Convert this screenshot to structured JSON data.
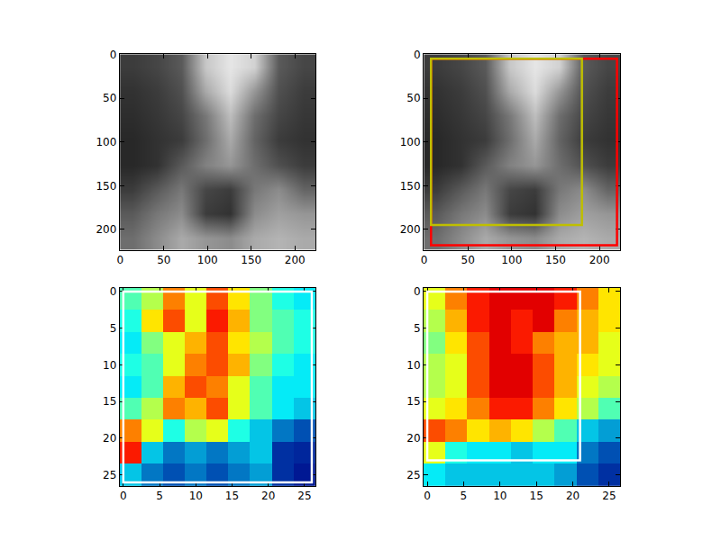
{
  "chart_data": [
    {
      "type": "image",
      "grid": false,
      "xlim": [
        -0.5,
        223.5
      ],
      "ylim": [
        223.5,
        -0.5
      ],
      "xticks": [
        0,
        50,
        100,
        150,
        200
      ],
      "yticks": [
        0,
        50,
        100,
        150,
        200
      ],
      "x": [
        14,
        42,
        70,
        98,
        126,
        154,
        182,
        210
      ],
      "y": [
        14,
        42,
        70,
        98,
        126,
        154,
        182,
        210
      ],
      "clim": [
        0,
        255
      ],
      "cells": [
        [
          60,
          70,
          90,
          200,
          230,
          210,
          90,
          70
        ],
        [
          50,
          60,
          80,
          170,
          220,
          150,
          80,
          60
        ],
        [
          45,
          55,
          70,
          120,
          190,
          110,
          70,
          55
        ],
        [
          40,
          50,
          60,
          110,
          170,
          100,
          60,
          50
        ],
        [
          40,
          50,
          90,
          130,
          150,
          110,
          80,
          60
        ],
        [
          60,
          90,
          120,
          70,
          60,
          120,
          140,
          100
        ],
        [
          90,
          120,
          140,
          60,
          50,
          140,
          160,
          150
        ],
        [
          110,
          140,
          170,
          150,
          140,
          170,
          180,
          170
        ]
      ],
      "boxes": []
    },
    {
      "type": "image",
      "grid": false,
      "xlim": [
        -0.5,
        223.5
      ],
      "ylim": [
        223.5,
        -0.5
      ],
      "xticks": [
        0,
        50,
        100,
        150,
        200
      ],
      "yticks": [
        0,
        50,
        100,
        150,
        200
      ],
      "x": [
        14,
        42,
        70,
        98,
        126,
        154,
        182,
        210
      ],
      "y": [
        14,
        42,
        70,
        98,
        126,
        154,
        182,
        210
      ],
      "clim": [
        0,
        255
      ],
      "cells": [
        [
          60,
          70,
          90,
          200,
          230,
          210,
          90,
          70
        ],
        [
          50,
          60,
          80,
          170,
          220,
          150,
          80,
          60
        ],
        [
          45,
          55,
          70,
          120,
          190,
          110,
          70,
          55
        ],
        [
          40,
          50,
          60,
          110,
          170,
          100,
          60,
          50
        ],
        [
          40,
          50,
          90,
          130,
          150,
          110,
          80,
          60
        ],
        [
          60,
          90,
          120,
          70,
          60,
          120,
          140,
          100
        ],
        [
          90,
          120,
          140,
          60,
          50,
          140,
          160,
          150
        ],
        [
          110,
          140,
          170,
          150,
          140,
          170,
          180,
          170
        ]
      ],
      "boxes": [
        {
          "x0": 8,
          "x1": 220,
          "y0": 5,
          "y1": 218,
          "color": "#ff0000"
        },
        {
          "x0": 8,
          "x1": 180,
          "y0": 5,
          "y1": 195,
          "color": "#bfbf00"
        }
      ]
    },
    {
      "type": "heatmap",
      "grid": false,
      "xlim": [
        -0.5,
        26.5
      ],
      "ylim": [
        26.5,
        -0.5
      ],
      "xticks": [
        0,
        5,
        10,
        15,
        20,
        25
      ],
      "yticks": [
        0,
        5,
        10,
        15,
        20,
        25
      ],
      "x": [
        1,
        4,
        7,
        10,
        13,
        16,
        19,
        22,
        25
      ],
      "y": [
        1,
        4,
        7,
        10,
        13,
        16,
        19,
        22,
        25
      ],
      "clim": [
        0,
        1
      ],
      "cells": [
        [
          0.45,
          0.55,
          0.75,
          0.6,
          0.8,
          0.65,
          0.5,
          0.4,
          0.35
        ],
        [
          0.4,
          0.65,
          0.8,
          0.6,
          0.85,
          0.7,
          0.5,
          0.45,
          0.4
        ],
        [
          0.35,
          0.5,
          0.6,
          0.7,
          0.8,
          0.65,
          0.55,
          0.45,
          0.4
        ],
        [
          0.4,
          0.45,
          0.6,
          0.75,
          0.8,
          0.7,
          0.5,
          0.4,
          0.35
        ],
        [
          0.35,
          0.45,
          0.7,
          0.8,
          0.75,
          0.6,
          0.45,
          0.35,
          0.35
        ],
        [
          0.45,
          0.55,
          0.75,
          0.7,
          0.8,
          0.6,
          0.45,
          0.35,
          0.3
        ],
        [
          0.75,
          0.6,
          0.4,
          0.55,
          0.6,
          0.4,
          0.3,
          0.2,
          0.15
        ],
        [
          0.85,
          0.3,
          0.2,
          0.25,
          0.2,
          0.25,
          0.3,
          0.1,
          0.08
        ],
        [
          0.3,
          0.2,
          0.15,
          0.2,
          0.15,
          0.2,
          0.25,
          0.1,
          0.05
        ]
      ],
      "boxes": [
        {
          "x0": 0,
          "x1": 26,
          "y0": 0,
          "y1": 26,
          "color": "#ffffff"
        }
      ]
    },
    {
      "type": "heatmap",
      "grid": false,
      "xlim": [
        -0.5,
        26.5
      ],
      "ylim": [
        26.5,
        -0.5
      ],
      "xticks": [
        0,
        5,
        10,
        15,
        20,
        25
      ],
      "yticks": [
        0,
        5,
        10,
        15,
        20,
        25
      ],
      "x": [
        1,
        4,
        7,
        10,
        13,
        16,
        19,
        22,
        25
      ],
      "y": [
        1,
        4,
        7,
        10,
        13,
        16,
        19,
        22,
        25
      ],
      "clim": [
        0,
        1
      ],
      "cells": [
        [
          0.6,
          0.75,
          0.85,
          0.9,
          0.9,
          0.9,
          0.85,
          0.75,
          0.65
        ],
        [
          0.55,
          0.7,
          0.85,
          0.9,
          0.85,
          0.9,
          0.75,
          0.7,
          0.65
        ],
        [
          0.5,
          0.65,
          0.8,
          0.9,
          0.85,
          0.75,
          0.7,
          0.7,
          0.6
        ],
        [
          0.55,
          0.6,
          0.8,
          0.9,
          0.9,
          0.8,
          0.7,
          0.65,
          0.6
        ],
        [
          0.55,
          0.6,
          0.8,
          0.9,
          0.9,
          0.8,
          0.7,
          0.6,
          0.55
        ],
        [
          0.6,
          0.65,
          0.75,
          0.85,
          0.85,
          0.75,
          0.65,
          0.55,
          0.45
        ],
        [
          0.8,
          0.75,
          0.65,
          0.7,
          0.65,
          0.55,
          0.45,
          0.3,
          0.25
        ],
        [
          0.6,
          0.4,
          0.35,
          0.35,
          0.3,
          0.35,
          0.35,
          0.2,
          0.15
        ],
        [
          0.35,
          0.3,
          0.3,
          0.3,
          0.3,
          0.3,
          0.25,
          0.15,
          0.1
        ]
      ],
      "boxes": [
        {
          "x0": 0,
          "x1": 21,
          "y0": 0,
          "y1": 23,
          "color": "#ffffff"
        }
      ]
    }
  ]
}
